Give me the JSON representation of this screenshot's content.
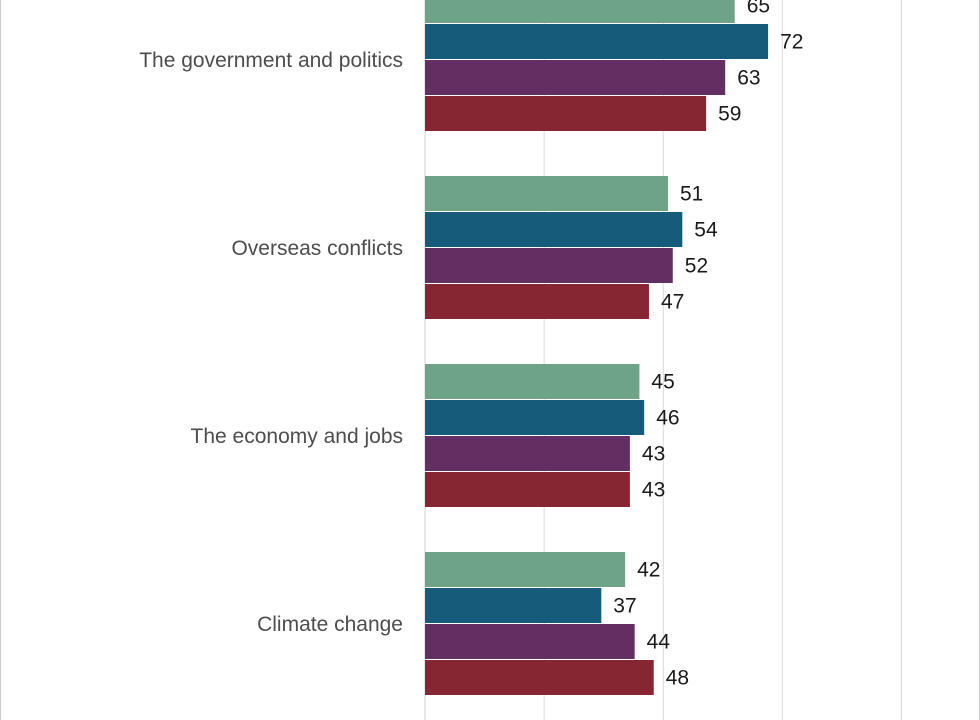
{
  "chart_data": {
    "type": "bar",
    "orientation": "horizontal",
    "categories": [
      "The government and politics",
      "Overseas conflicts",
      "The economy and jobs",
      "Climate change"
    ],
    "series": [
      {
        "values": [
          65,
          51,
          45,
          42
        ],
        "color": "#6fa388"
      },
      {
        "values": [
          72,
          54,
          46,
          37
        ],
        "color": "#165c7a"
      },
      {
        "values": [
          63,
          52,
          43,
          44
        ],
        "color": "#632e62"
      },
      {
        "values": [
          59,
          47,
          43,
          48
        ],
        "color": "#862633"
      }
    ],
    "xlim": [
      0,
      100
    ],
    "grid": true,
    "gridline_color": "#d9d9d9",
    "frame_color": "#cccccc"
  }
}
